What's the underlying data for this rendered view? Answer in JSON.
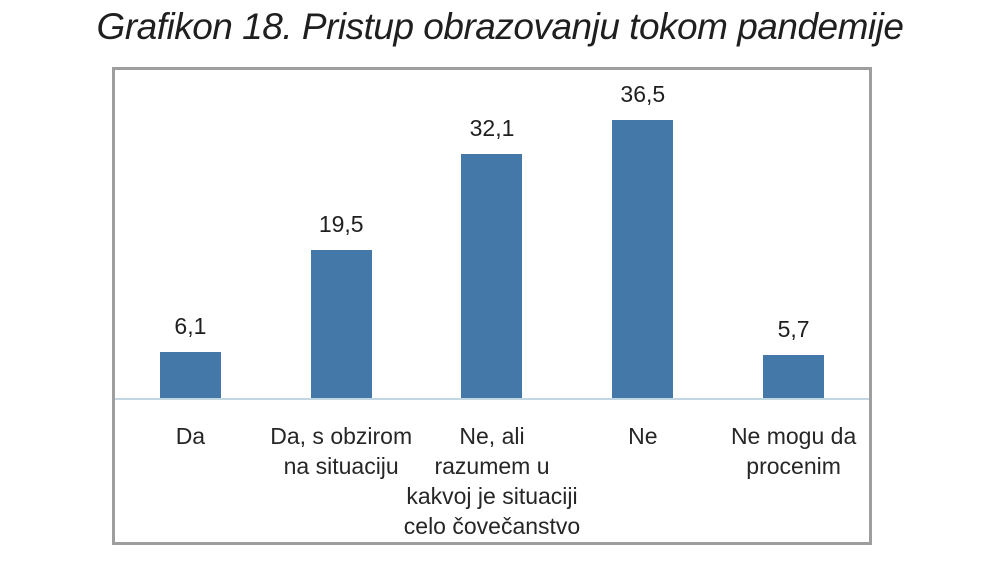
{
  "chart_data": {
    "type": "bar",
    "title": "Grafikon 18. Pristup obrazovanju tokom pandemije",
    "categories": [
      "Da",
      "Da, s obzirom\nna situaciju",
      "Ne, ali\nrazumem u\nkakvoj je situaciji\ncelo čovečanstvo",
      "Ne",
      "Ne mogu da\nprocenim"
    ],
    "values": [
      6.1,
      19.5,
      32.1,
      36.5,
      5.7
    ],
    "value_labels": [
      "6,1",
      "19,5",
      "32,1",
      "36,5",
      "5,7"
    ],
    "xlabel": "",
    "ylabel": "",
    "ylim": [
      0,
      43.1
    ],
    "grid": false,
    "legend": "none",
    "data_labels": "above bars",
    "bar_color": "#4478a8",
    "axis_line_color": "#c3d7e3",
    "frame_border_color": "#9e9e9e",
    "text_color": "#262626"
  }
}
